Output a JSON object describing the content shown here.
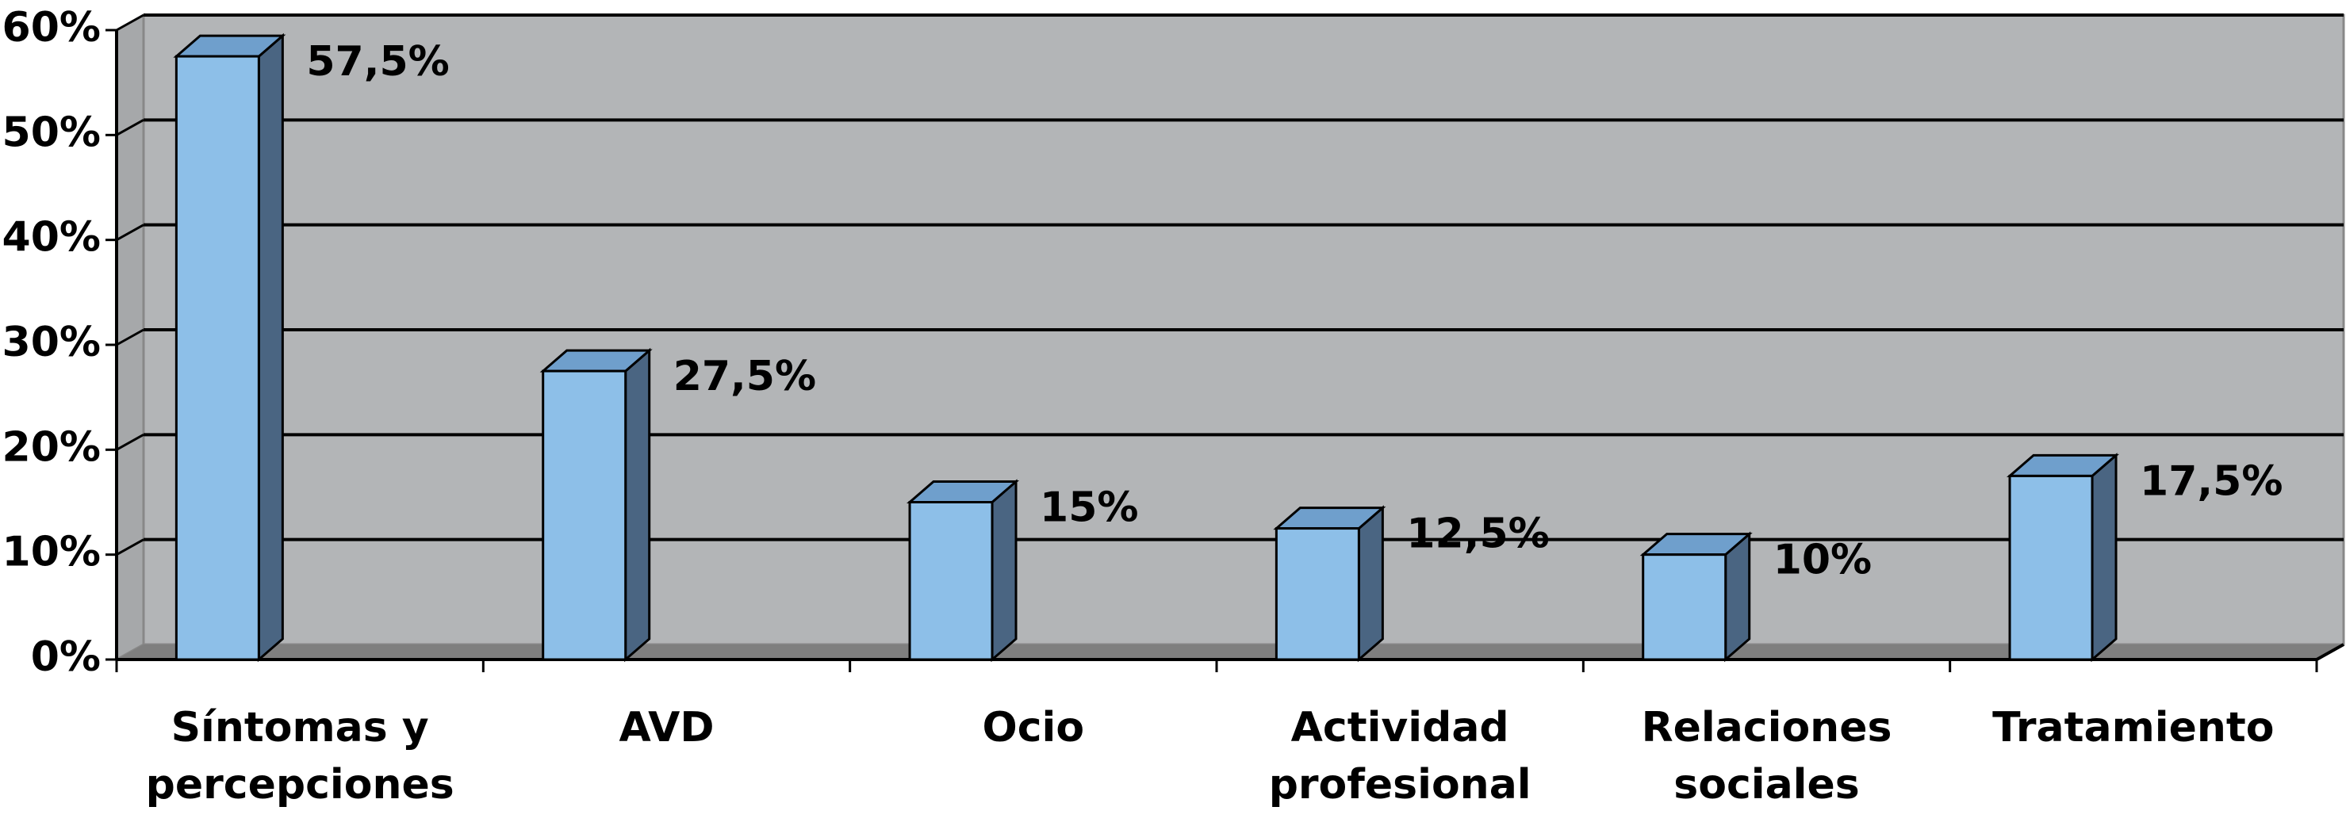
{
  "chart_data": {
    "type": "bar3d",
    "categories": [
      "Síntomas y percepciones",
      "AVD",
      "Ocio",
      "Actividad profesional",
      "Relaciones sociales",
      "Tratamiento"
    ],
    "values": [
      57.5,
      27.5,
      15,
      12.5,
      10,
      17.5
    ],
    "value_labels": [
      "57,5%",
      "27,5%",
      "15%",
      "12,5%",
      "10%",
      "17,5%"
    ],
    "color": "#8dbfe8",
    "ylim": [
      0,
      60
    ],
    "yticks": [
      {
        "value": 0,
        "label": "0%"
      },
      {
        "value": 10,
        "label": "10%"
      },
      {
        "value": 20,
        "label": "20%"
      },
      {
        "value": 30,
        "label": "30%"
      },
      {
        "value": 40,
        "label": "40%"
      },
      {
        "value": 50,
        "label": "50%"
      },
      {
        "value": 60,
        "label": "60%"
      }
    ],
    "grid": true
  }
}
